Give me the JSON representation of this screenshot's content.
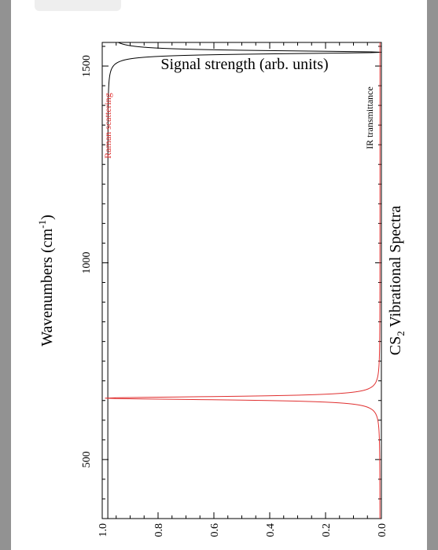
{
  "chart_data": {
    "type": "line",
    "title_main": "CS",
    "title_sub": "2",
    "title_rest": " Vibrational Spectra",
    "xlabel_main": "Wavenumbers (cm",
    "xlabel_sup": "-1",
    "xlabel_end": ")",
    "ylabel": "Signal strength (arb. units)",
    "xlim": [
      350,
      1560
    ],
    "ylim": [
      0,
      1.0
    ],
    "x_ticks": [
      500,
      1000,
      1500
    ],
    "x_tick_labels": [
      "500",
      "1000",
      "1500"
    ],
    "y_ticks": [
      0.0,
      0.2,
      0.4,
      0.6,
      0.8,
      1.0
    ],
    "y_tick_labels": [
      "0.0",
      "0.2",
      "0.4",
      "0.6",
      "0.8",
      "1.0"
    ],
    "grid": false,
    "series": [
      {
        "name": "IR transmittance",
        "color": "#000000",
        "baseline": 0.98,
        "peaks": [
          {
            "x": 1535,
            "depth": 0.98,
            "width": 10
          }
        ]
      },
      {
        "name": "Raman scattering",
        "color": "#e03030",
        "baseline": 0.005,
        "peaks": [
          {
            "x": 656,
            "height": 0.99,
            "width": 10
          }
        ]
      }
    ]
  }
}
